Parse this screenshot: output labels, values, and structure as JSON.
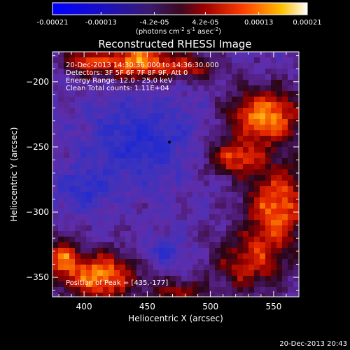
{
  "colorbar": {
    "ticks": [
      "-0.00021",
      "-0.00013",
      "-4.2e-05",
      "4.2e-05",
      "0.00013",
      "0.00021"
    ],
    "units_main": "(photons cm",
    "units_sup1": "-2",
    "units_mid1": " s",
    "units_sup2": "-1",
    "units_mid2": " asec",
    "units_sup3": "-2",
    "units_end": ")",
    "range": [
      -0.00021,
      0.00021
    ]
  },
  "chart_data": {
    "type": "heatmap",
    "title": "Reconstructed RHESSI Image",
    "xlabel": "Heliocentric X (arcsec)",
    "ylabel": "Heliocentric Y (arcsec)",
    "xlim": [
      375,
      570
    ],
    "ylim": [
      -365,
      -177
    ],
    "xticks": [
      400,
      450,
      500,
      550
    ],
    "yticks": [
      -200,
      -250,
      -300,
      -350
    ],
    "annotations": [
      "20-Dec-2013 14:30:36.000 to 14:36:30.000",
      "Detectors: 3F 5F 6F 7F 8F 9F, Att 0",
      "Energy Range: 12.0 - 25.0 keV",
      "Clean     Total counts: 1.11E+04"
    ],
    "peak_label": "Position of Peak = [435,-177]",
    "peak": [
      435,
      -177
    ],
    "colormap": "blue-purple-red-yellow-white"
  },
  "footer": {
    "timestamp": "20-Dec-2013 20:43"
  }
}
